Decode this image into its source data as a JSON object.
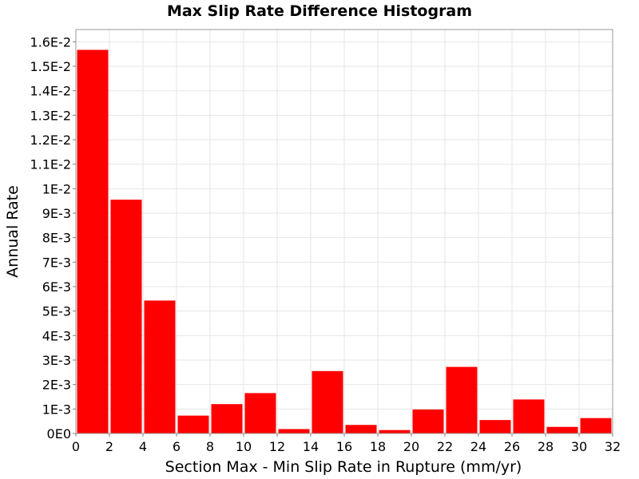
{
  "chart_data": {
    "type": "bar",
    "title": "Max Slip Rate Difference Histogram",
    "xlabel": "Section Max - Min Slip Rate in Rupture (mm/yr)",
    "ylabel": "Annual Rate",
    "xlim": [
      0,
      32
    ],
    "ylim": [
      0,
      0.0165
    ],
    "bin_width": 2,
    "bins": [
      {
        "x": 1,
        "value": 0.01567
      },
      {
        "x": 3,
        "value": 0.00955
      },
      {
        "x": 5,
        "value": 0.00543
      },
      {
        "x": 7,
        "value": 0.00073
      },
      {
        "x": 9,
        "value": 0.0012
      },
      {
        "x": 11,
        "value": 0.00165
      },
      {
        "x": 13,
        "value": 0.00018
      },
      {
        "x": 15,
        "value": 0.00255
      },
      {
        "x": 17,
        "value": 0.00035
      },
      {
        "x": 19,
        "value": 0.00014
      },
      {
        "x": 21,
        "value": 0.00098
      },
      {
        "x": 23,
        "value": 0.00272
      },
      {
        "x": 25,
        "value": 0.00055
      },
      {
        "x": 27,
        "value": 0.00139
      },
      {
        "x": 29,
        "value": 0.00027
      },
      {
        "x": 31,
        "value": 0.00063
      }
    ],
    "x_ticks": [
      {
        "value": 0,
        "label": "0"
      },
      {
        "value": 2,
        "label": "2"
      },
      {
        "value": 4,
        "label": "4"
      },
      {
        "value": 6,
        "label": "6"
      },
      {
        "value": 8,
        "label": "8"
      },
      {
        "value": 10,
        "label": "10"
      },
      {
        "value": 12,
        "label": "12"
      },
      {
        "value": 14,
        "label": "14"
      },
      {
        "value": 16,
        "label": "16"
      },
      {
        "value": 18,
        "label": "18"
      },
      {
        "value": 20,
        "label": "20"
      },
      {
        "value": 22,
        "label": "22"
      },
      {
        "value": 24,
        "label": "24"
      },
      {
        "value": 26,
        "label": "26"
      },
      {
        "value": 28,
        "label": "28"
      },
      {
        "value": 30,
        "label": "30"
      },
      {
        "value": 32,
        "label": "32"
      }
    ],
    "y_ticks": [
      {
        "value": 0,
        "label": "0E0"
      },
      {
        "value": 0.001,
        "label": "1E-3"
      },
      {
        "value": 0.002,
        "label": "2E-3"
      },
      {
        "value": 0.003,
        "label": "3E-3"
      },
      {
        "value": 0.004,
        "label": "4E-3"
      },
      {
        "value": 0.005,
        "label": "5E-3"
      },
      {
        "value": 0.006,
        "label": "6E-3"
      },
      {
        "value": 0.007,
        "label": "7E-3"
      },
      {
        "value": 0.008,
        "label": "8E-3"
      },
      {
        "value": 0.009,
        "label": "9E-3"
      },
      {
        "value": 0.01,
        "label": "1E-2"
      },
      {
        "value": 0.011,
        "label": "1.1E-2"
      },
      {
        "value": 0.012,
        "label": "1.2E-2"
      },
      {
        "value": 0.013,
        "label": "1.3E-2"
      },
      {
        "value": 0.014,
        "label": "1.4E-2"
      },
      {
        "value": 0.015,
        "label": "1.5E-2"
      },
      {
        "value": 0.016,
        "label": "1.6E-2"
      }
    ],
    "bar_color": "#ff0000",
    "grid": true,
    "legend": "none"
  }
}
